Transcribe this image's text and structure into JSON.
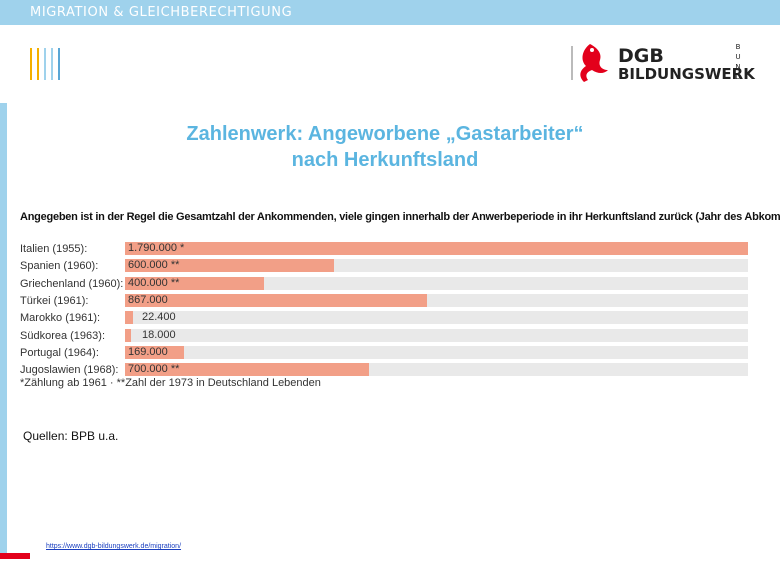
{
  "header": {
    "title": "MIGRATION & GLEICHBERECHTIGUNG"
  },
  "logo": {
    "line1": "DGB",
    "line2": "BILDUNGSWERK",
    "side": "BUND"
  },
  "slide": {
    "title_line1": "Zahlenwerk: Angeworbene „Gastarbeiter“",
    "title_line2": "nach Herkunftsland",
    "sources": "Quellen: BPB u.a.",
    "url": "https://www.dgb-bildungswerk.de/migration/"
  },
  "colors": {
    "header_bar": "#9fd2ec",
    "title": "#5bb5e0",
    "bar": "#f29f87",
    "track": "#e9e9e9",
    "accent_red": "#e3001b",
    "deco_lines": [
      "#f4b000",
      "#f4b000",
      "#9fd2ec",
      "#9fd2ec",
      "#5aa7d6"
    ]
  },
  "chart_data": {
    "type": "bar",
    "orientation": "horizontal",
    "title": "Angegeben ist in der Regel die Gesamtzahl der Ankommenden, viele gingen innerhalb der Anwerbeperiode in ihr Herkunftsland zurück (Jahr des Abkommens)",
    "categories": [
      "Italien (1955):",
      "Spanien (1960):",
      "Griechenland (1960):",
      "Türkei (1961):",
      "Marokko (1961):",
      "Südkorea (1963):",
      "Portugal (1964):",
      "Jugoslawien (1968):"
    ],
    "values": [
      1790000,
      600000,
      400000,
      867000,
      22400,
      18000,
      169000,
      700000
    ],
    "value_labels": [
      "1.790.000 *",
      "600.000 **",
      "400.000 **",
      "867.000",
      "22.400",
      "18.000",
      "169.000",
      "700.000 **"
    ],
    "xlim": [
      0,
      1790000
    ],
    "footnote": "*Zählung ab 1961  ·  **Zahl der 1973 in Deutschland Lebenden"
  }
}
